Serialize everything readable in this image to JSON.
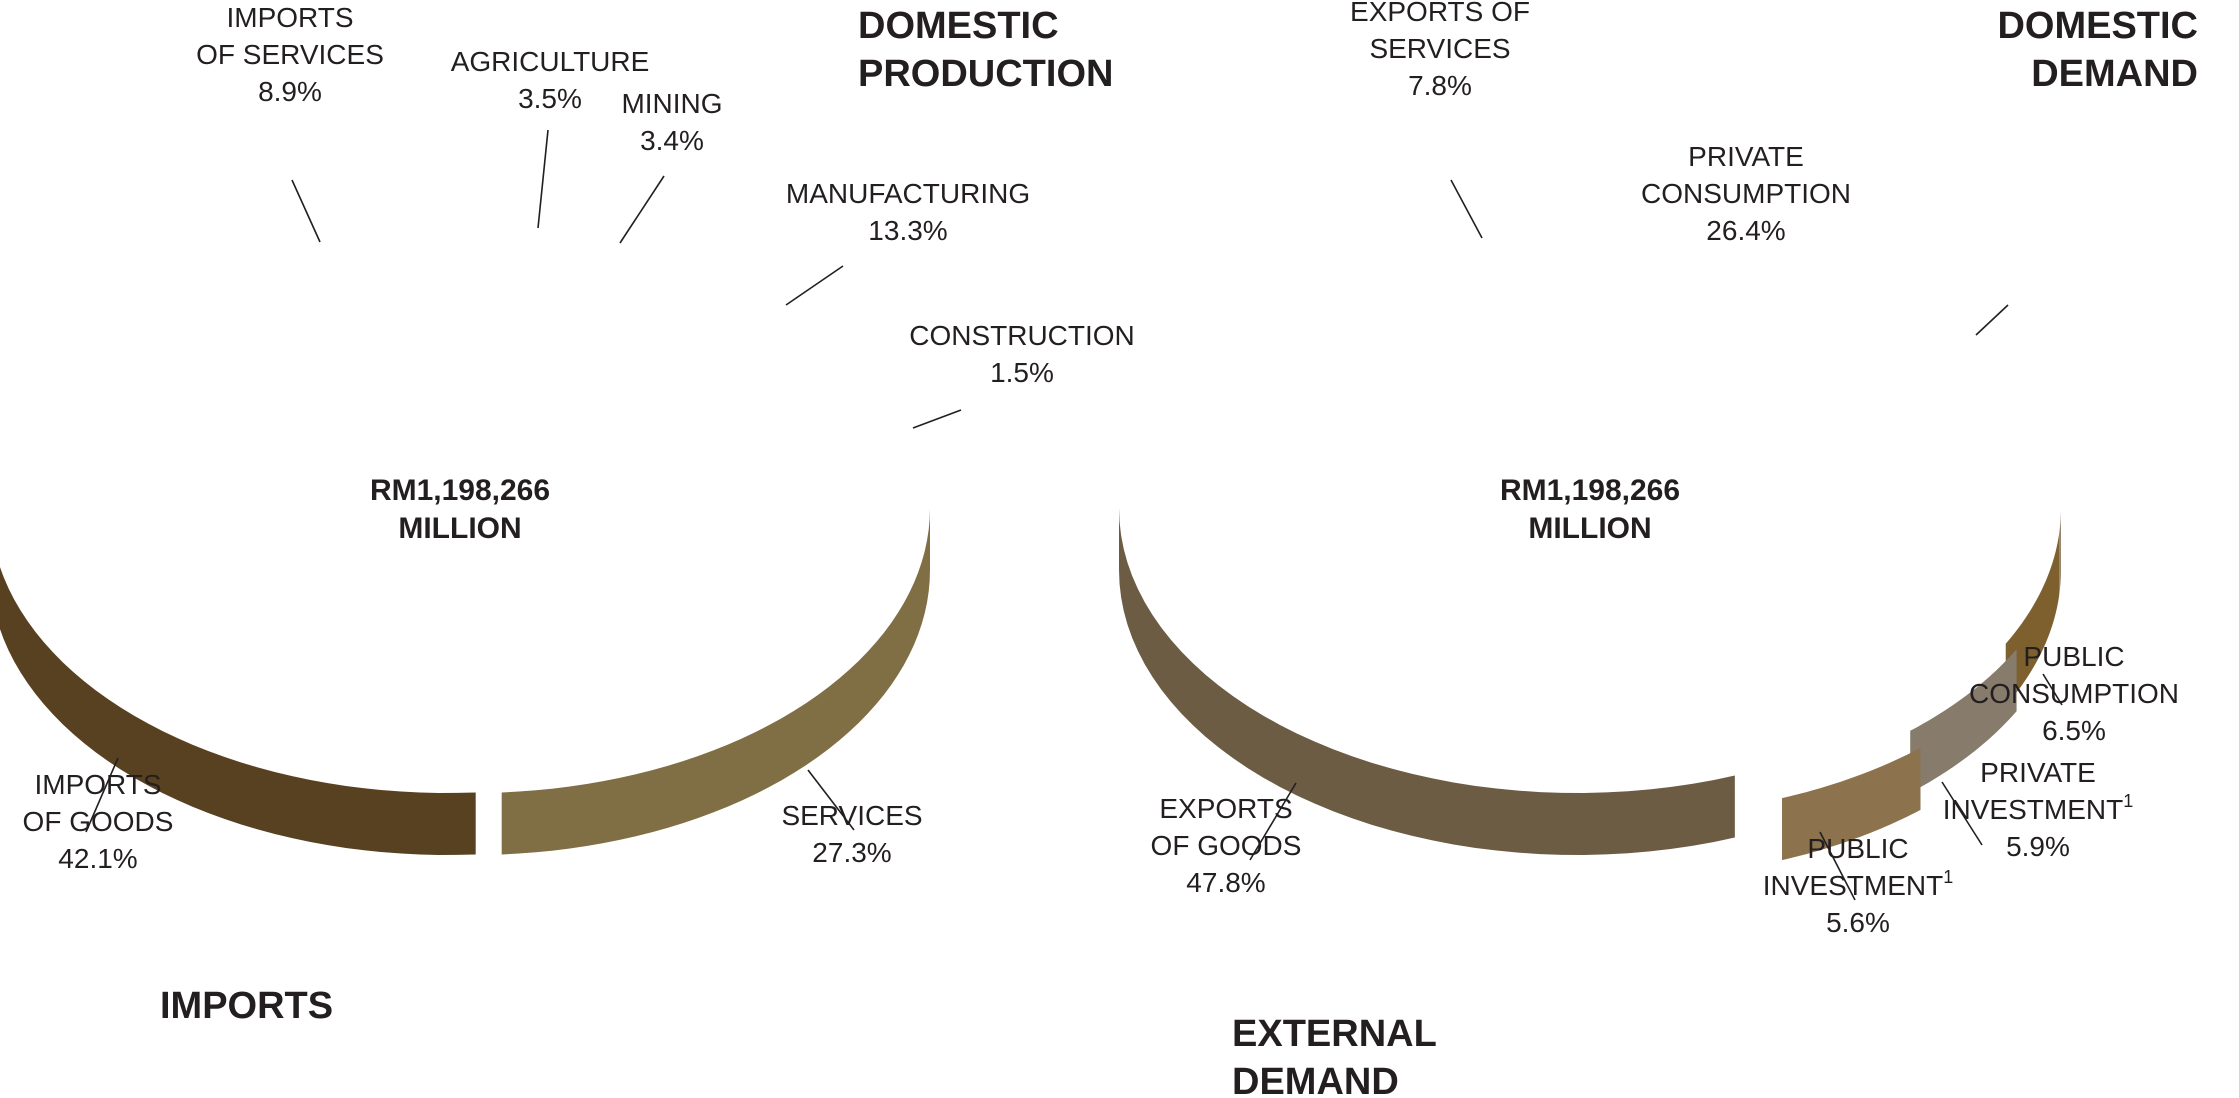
{
  "chart_data": [
    {
      "type": "pie",
      "center_label": [
        "RM1,198,266",
        "MILLION"
      ],
      "group_titles": {
        "top": [
          "DOMESTIC",
          "PRODUCTION"
        ],
        "bottom": [
          "IMPORTS"
        ]
      },
      "slices": [
        {
          "name": [
            "AGRICULTURE"
          ],
          "value": 3.5,
          "value_label": "3.5%",
          "color": "#ad853e",
          "group": "top"
        },
        {
          "name": [
            "MINING"
          ],
          "value": 3.4,
          "value_label": "3.4%",
          "color": "#c0985e",
          "group": "top"
        },
        {
          "name": [
            "MANUFACTURING"
          ],
          "value": 13.3,
          "value_label": "13.3%",
          "color": "#c2ac7b",
          "group": "top"
        },
        {
          "name": [
            "CONSTRUCTION"
          ],
          "value": 1.5,
          "value_label": "1.5%",
          "color": "#8a642b",
          "group": "top"
        },
        {
          "name": [
            "SERVICES"
          ],
          "value": 27.3,
          "value_label": "27.3%",
          "color": "#b29a5e",
          "group": "top"
        },
        {
          "name": [
            "IMPORTS",
            "OF GOODS"
          ],
          "value": 42.1,
          "value_label": "42.1%",
          "color": "#7a5a2e",
          "group": "bottom"
        },
        {
          "name": [
            "IMPORTS",
            "OF SERVICES"
          ],
          "value": 8.9,
          "value_label": "8.9%",
          "color": "#d0b899",
          "group": "bottom"
        }
      ]
    },
    {
      "type": "pie",
      "center_label": [
        "RM1,198,266",
        "MILLION"
      ],
      "group_titles": {
        "top": [
          "DOMESTIC",
          "DEMAND"
        ],
        "bottom": [
          "EXTERNAL",
          "DEMAND"
        ]
      },
      "slices": [
        {
          "name": [
            "PRIVATE",
            "CONSUMPTION"
          ],
          "value": 26.4,
          "value_label": "26.4%",
          "color": "#d1b898",
          "group": "top"
        },
        {
          "name": [
            "PUBLIC",
            "CONSUMPTION"
          ],
          "value": 6.5,
          "value_label": "6.5%",
          "color": "#ad853e",
          "group": "top"
        },
        {
          "name": [
            "PRIVATE",
            "INVESTMENT"
          ],
          "footnote": "1",
          "value": 5.9,
          "value_label": "5.9%",
          "color": "#bcab94",
          "group": "top"
        },
        {
          "name": [
            "PUBLIC",
            "INVESTMENT"
          ],
          "footnote": "1",
          "value": 5.6,
          "value_label": "5.6%",
          "color": "#c2a06c",
          "group": "top"
        },
        {
          "name": [
            "EXPORTS",
            "OF GOODS"
          ],
          "value": 47.8,
          "value_label": "47.8%",
          "color": "#98805e",
          "group": "bottom"
        },
        {
          "name": [
            "EXPORTS OF",
            "SERVICES"
          ],
          "value": 7.8,
          "value_label": "7.8%",
          "color": "#ae934a",
          "group": "bottom"
        }
      ]
    }
  ]
}
